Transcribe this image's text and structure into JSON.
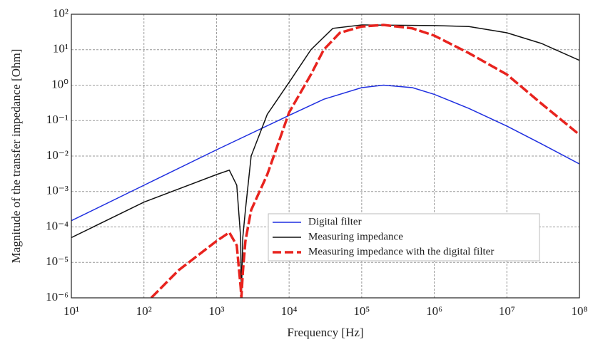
{
  "chart_data": {
    "type": "line",
    "xlabel": "Frequency [Hz]",
    "ylabel": "Magnitude of the transfer impedance [Ohm]",
    "xscale": "log",
    "yscale": "log",
    "grid": true,
    "legend": "lower right",
    "xlim": [
      10,
      100000000
    ],
    "ylim": [
      1e-06,
      100
    ],
    "xticks": [
      {
        "value": 10,
        "label": "10¹"
      },
      {
        "value": 100,
        "label": "10²"
      },
      {
        "value": 1000,
        "label": "10³"
      },
      {
        "value": 10000,
        "label": "10⁴"
      },
      {
        "value": 100000,
        "label": "10⁵"
      },
      {
        "value": 1000000,
        "label": "10⁶"
      },
      {
        "value": 10000000,
        "label": "10⁷"
      },
      {
        "value": 100000000,
        "label": "10⁸"
      }
    ],
    "yticks": [
      {
        "value": 1e-06,
        "label": "10⁻⁶"
      },
      {
        "value": 1e-05,
        "label": "10⁻⁵"
      },
      {
        "value": 0.0001,
        "label": "10⁻⁴"
      },
      {
        "value": 0.001,
        "label": "10⁻³"
      },
      {
        "value": 0.01,
        "label": "10⁻²"
      },
      {
        "value": 0.1,
        "label": "10⁻¹"
      },
      {
        "value": 1,
        "label": "10⁰"
      },
      {
        "value": 10,
        "label": "10¹"
      },
      {
        "value": 100,
        "label": "10²"
      }
    ],
    "series": [
      {
        "name": "Digital filter",
        "color": "#1f2fe0",
        "dash": false,
        "x": [
          10,
          100,
          1000,
          10000,
          30000,
          100000,
          200000,
          500000,
          1000000,
          3000000,
          10000000,
          30000000,
          100000000
        ],
        "values": [
          0.00015,
          0.0015,
          0.015,
          0.14,
          0.4,
          0.85,
          1.0,
          0.85,
          0.55,
          0.22,
          0.07,
          0.022,
          0.006
        ]
      },
      {
        "name": "Measuring impedance",
        "color": "#111111",
        "dash": false,
        "x": [
          10,
          100,
          1000,
          1500,
          1900,
          2150,
          2200,
          2300,
          2500,
          3000,
          5000,
          10000,
          20000,
          40000,
          100000,
          1000000,
          3000000,
          10000000,
          30000000,
          100000000
        ],
        "values": [
          5e-05,
          0.0005,
          0.003,
          0.004,
          0.0015,
          5e-05,
          1e-06,
          5e-05,
          0.0003,
          0.01,
          0.15,
          1.2,
          10,
          40,
          50,
          48,
          45,
          30,
          15,
          5
        ]
      },
      {
        "name": "Measuring impedance with the digital filter",
        "color": "#e8231e",
        "dash": true,
        "x": [
          126,
          300,
          1000,
          1500,
          1900,
          2150,
          2200,
          2300,
          2500,
          3000,
          5000,
          10000,
          20000,
          30000,
          50000,
          100000,
          200000,
          500000,
          1000000,
          3000000,
          10000000,
          30000000,
          100000000
        ],
        "values": [
          1e-06,
          6e-06,
          4e-05,
          7e-05,
          3e-05,
          2e-06,
          1e-06,
          5e-06,
          4e-05,
          0.0003,
          0.003,
          0.17,
          2,
          10,
          30,
          45,
          50,
          40,
          25,
          8,
          2,
          0.3,
          0.04
        ]
      }
    ]
  }
}
